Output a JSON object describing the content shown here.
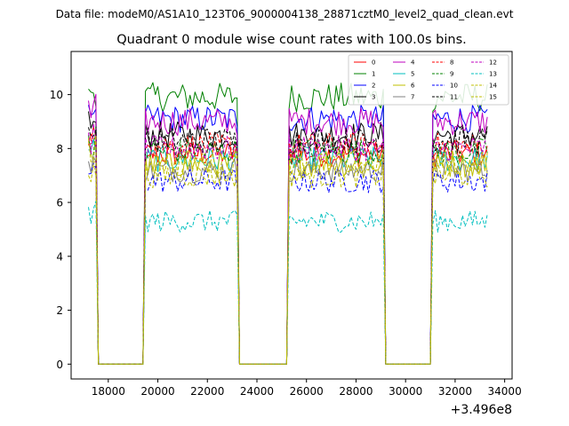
{
  "chart_data": {
    "type": "line",
    "suptitle": "Data file: modeM0/AS1A10_123T06_9000004138_28871cztM0_level2_quad_clean.evt",
    "title": "Quadrant 0 module wise count rates with 100.0s bins.",
    "xlabel": "",
    "ylabel": "",
    "x_offset_label": "+3.496e8",
    "xlim": [
      16500,
      34300
    ],
    "ylim": [
      -0.55,
      11.6
    ],
    "x_ticks": [
      18000,
      20000,
      22000,
      24000,
      26000,
      28000,
      30000,
      32000,
      34000
    ],
    "x_tick_labels": [
      "18000",
      "20000",
      "22000",
      "24000",
      "26000",
      "28000",
      "30000",
      "32000",
      "34000"
    ],
    "y_ticks": [
      0,
      2,
      4,
      6,
      8,
      10
    ],
    "y_tick_labels": [
      "0",
      "2",
      "4",
      "6",
      "8",
      "10"
    ],
    "bin_seconds": 100,
    "x_start": 17200,
    "x_end": 33300,
    "observing_windows": [
      [
        17200,
        17500
      ],
      [
        19500,
        23200
      ],
      [
        25300,
        29100
      ],
      [
        31100,
        33300
      ]
    ],
    "legend_position": "top-right",
    "series": [
      {
        "name": "0",
        "color": "#ff0000",
        "dash": "solid",
        "mean": 7.8
      },
      {
        "name": "1",
        "color": "#008000",
        "dash": "solid",
        "mean": 9.9
      },
      {
        "name": "2",
        "color": "#0000ff",
        "dash": "solid",
        "mean": 9.1
      },
      {
        "name": "3",
        "color": "#000000",
        "dash": "solid",
        "mean": 8.5
      },
      {
        "name": "4",
        "color": "#bf00bf",
        "dash": "solid",
        "mean": 9.0
      },
      {
        "name": "5",
        "color": "#00bfbf",
        "dash": "solid",
        "mean": 7.6
      },
      {
        "name": "6",
        "color": "#bfbf00",
        "dash": "solid",
        "mean": 7.4
      },
      {
        "name": "7",
        "color": "#808080",
        "dash": "solid",
        "mean": 7.2
      },
      {
        "name": "8",
        "color": "#ff0000",
        "dash": "dashed",
        "mean": 8.1
      },
      {
        "name": "9",
        "color": "#008000",
        "dash": "dashed",
        "mean": 7.9
      },
      {
        "name": "10",
        "color": "#0000ff",
        "dash": "dashed",
        "mean": 6.8
      },
      {
        "name": "11",
        "color": "#000000",
        "dash": "dashed",
        "mean": 8.3
      },
      {
        "name": "12",
        "color": "#bf00bf",
        "dash": "dashed",
        "mean": 8.0
      },
      {
        "name": "13",
        "color": "#00bfbf",
        "dash": "dashed",
        "mean": 5.3
      },
      {
        "name": "14",
        "color": "#bfbf00",
        "dash": "dashed",
        "mean": 7.0
      },
      {
        "name": "15",
        "color": "#bfbf00",
        "dash": "dashed",
        "mean": 7.5
      }
    ]
  }
}
